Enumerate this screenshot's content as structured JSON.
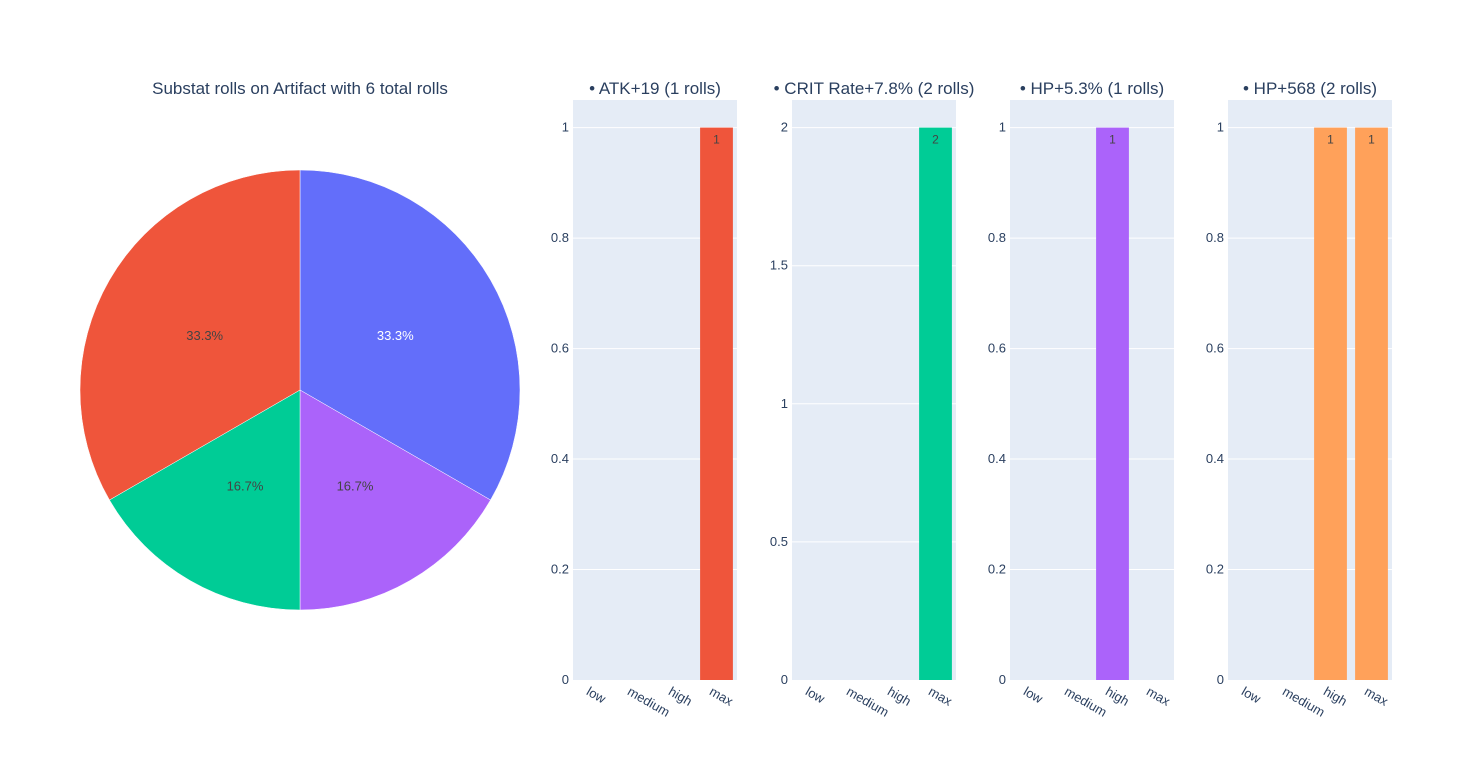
{
  "chart_data": [
    {
      "type": "pie",
      "title": "Substat rolls on Artifact with 6 total rolls",
      "slices": [
        {
          "value": 2,
          "label": "33.3%",
          "color": "#636efa",
          "text_color": "#ffffff"
        },
        {
          "value": 1,
          "label": "16.7%",
          "color": "#ab63fa",
          "text_color": "#444444"
        },
        {
          "value": 1,
          "label": "16.7%",
          "color": "#00cc96",
          "text_color": "#444444"
        },
        {
          "value": 2,
          "label": "33.3%",
          "color": "#ef553b",
          "text_color": "#444444"
        }
      ]
    },
    {
      "type": "bar",
      "title": "• ATK+19 (1 rolls)",
      "categories": [
        "low",
        "medium",
        "high",
        "max"
      ],
      "values": [
        0,
        0,
        0,
        1
      ],
      "data_labels": [
        "",
        "",
        "",
        "1"
      ],
      "color": "#ef553b",
      "ylim": [
        0,
        1.05
      ],
      "yticks": [
        0,
        0.2,
        0.4,
        0.6,
        0.8,
        1
      ],
      "ytick_labels": [
        "0",
        "0.2",
        "0.4",
        "0.6",
        "0.8",
        "1"
      ]
    },
    {
      "type": "bar",
      "title": "• CRIT Rate+7.8% (2 rolls)",
      "categories": [
        "low",
        "medium",
        "high",
        "max"
      ],
      "values": [
        0,
        0,
        0,
        2
      ],
      "data_labels": [
        "",
        "",
        "",
        "2"
      ],
      "color": "#00cc96",
      "ylim": [
        0,
        2.1
      ],
      "yticks": [
        0,
        0.5,
        1,
        1.5,
        2
      ],
      "ytick_labels": [
        "0",
        "0.5",
        "1",
        "1.5",
        "2"
      ]
    },
    {
      "type": "bar",
      "title": "• HP+5.3% (1 rolls)",
      "categories": [
        "low",
        "medium",
        "high",
        "max"
      ],
      "values": [
        0,
        0,
        1,
        0
      ],
      "data_labels": [
        "",
        "",
        "1",
        ""
      ],
      "color": "#ab63fa",
      "ylim": [
        0,
        1.05
      ],
      "yticks": [
        0,
        0.2,
        0.4,
        0.6,
        0.8,
        1
      ],
      "ytick_labels": [
        "0",
        "0.2",
        "0.4",
        "0.6",
        "0.8",
        "1"
      ]
    },
    {
      "type": "bar",
      "title": "• HP+568 (2 rolls)",
      "categories": [
        "low",
        "medium",
        "high",
        "max"
      ],
      "values": [
        0,
        0,
        1,
        1
      ],
      "data_labels": [
        "",
        "",
        "1",
        "1"
      ],
      "color": "#ffa15a",
      "ylim": [
        0,
        1.05
      ],
      "yticks": [
        0,
        0.2,
        0.4,
        0.6,
        0.8,
        1
      ],
      "ytick_labels": [
        "0",
        "0.2",
        "0.4",
        "0.6",
        "0.8",
        "1"
      ]
    }
  ]
}
